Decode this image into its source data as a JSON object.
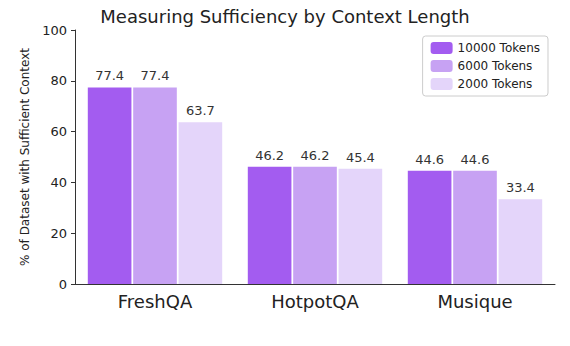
{
  "chart_data": {
    "type": "bar",
    "title": "Measuring Sufficiency by Context Length",
    "y_label": "% of Dataset with Sufficient Context",
    "categories": [
      "FreshQA",
      "HotpotQA",
      "Musique"
    ],
    "series": [
      {
        "name": "10000 Tokens",
        "color": "#a35cf0",
        "values": [
          77.4,
          46.2,
          44.6
        ]
      },
      {
        "name": "6000 Tokens",
        "color": "#c7a2f3",
        "values": [
          77.4,
          46.2,
          44.6
        ]
      },
      {
        "name": "2000 Tokens",
        "color": "#e4d5fa",
        "values": [
          63.7,
          45.4,
          33.4
        ]
      }
    ],
    "ylim": [
      0,
      100
    ],
    "yticks": [
      0,
      20,
      40,
      60,
      80,
      100
    ],
    "grid": false,
    "legend": "upper right",
    "data_labels": true
  }
}
